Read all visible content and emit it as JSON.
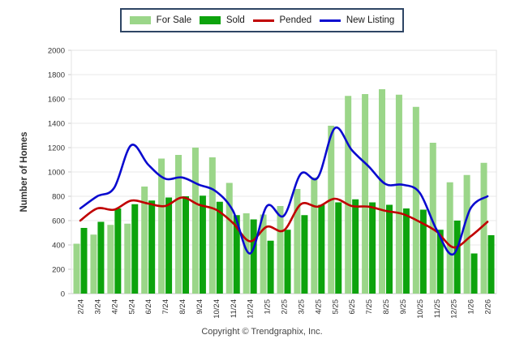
{
  "page": {
    "footer": "Copyright © Trendgraphix, Inc."
  },
  "chart_data": {
    "type": "bar+line",
    "title": "",
    "xlabel": "",
    "ylabel": "Number of Homes",
    "ylim": [
      0,
      2000
    ],
    "yticks": [
      0,
      200,
      400,
      600,
      800,
      1000,
      1200,
      1400,
      1600,
      1800,
      2000
    ],
    "grid": true,
    "legend_position": "top",
    "categories": [
      "2/24",
      "3/24",
      "4/24",
      "5/24",
      "6/24",
      "7/24",
      "8/24",
      "9/24",
      "10/24",
      "11/24",
      "12/24",
      "1/25",
      "2/25",
      "3/25",
      "4/25",
      "5/25",
      "6/25",
      "7/25",
      "8/25",
      "9/25",
      "10/25",
      "11/25",
      "12/25",
      "1/26",
      "2/26"
    ],
    "series": [
      {
        "name": "For Sale",
        "type": "bar",
        "color": "#9BD689",
        "values": [
          410,
          485,
          565,
          575,
          880,
          1110,
          1140,
          1200,
          1120,
          910,
          660,
          650,
          720,
          860,
          955,
          1380,
          1625,
          1640,
          1680,
          1635,
          1535,
          1240,
          915,
          975,
          1075
        ]
      },
      {
        "name": "Sold",
        "type": "bar",
        "color": "#0DA30D",
        "values": [
          540,
          590,
          700,
          735,
          765,
          790,
          800,
          805,
          755,
          645,
          610,
          435,
          525,
          645,
          730,
          750,
          775,
          750,
          730,
          700,
          690,
          525,
          600,
          330,
          480
        ]
      },
      {
        "name": "Pended",
        "type": "line",
        "color": "#C00000",
        "values": [
          600,
          700,
          690,
          765,
          740,
          720,
          790,
          730,
          690,
          580,
          430,
          550,
          520,
          735,
          715,
          780,
          720,
          715,
          680,
          655,
          590,
          510,
          380,
          470,
          590
        ]
      },
      {
        "name": "New Listing",
        "type": "line",
        "color": "#0A0ACF",
        "values": [
          700,
          800,
          870,
          1220,
          1060,
          945,
          955,
          895,
          840,
          680,
          330,
          720,
          640,
          985,
          955,
          1360,
          1180,
          1045,
          900,
          895,
          830,
          525,
          325,
          700,
          800
        ]
      }
    ]
  },
  "colors": {
    "grid": "#E9E9E9",
    "axis_line": "#C9C9C9",
    "plot_border": "#E3E3E3",
    "tick_text": "#333333",
    "legend_border": "#2E4564"
  }
}
